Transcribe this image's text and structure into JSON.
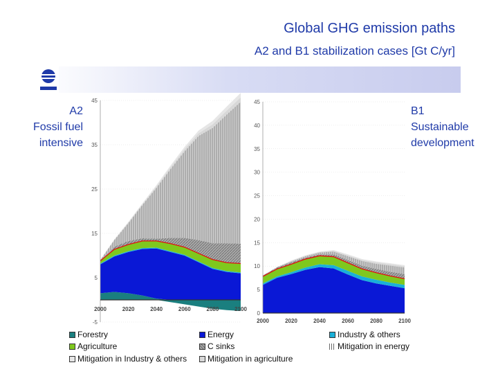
{
  "title": "Global GHG emission paths",
  "subtitle": "A2 and B1 stabilization cases [Gt C/yr]",
  "left_label": [
    "A2",
    "Fossil fuel",
    "intensive"
  ],
  "right_label": [
    "B1",
    "Sustainable",
    "development"
  ],
  "colors": {
    "forestry": "#1a7f7f",
    "energy": "#0a18d6",
    "industry": "#1ab0d8",
    "agriculture": "#7fc81e",
    "c_sinks": "#9a9a9a",
    "mitigation_energy": "#bcbcbc",
    "mitigation_industry": "#e6e6e6",
    "mitigation_agriculture": "#d8d8d8",
    "redline": "#e01010",
    "brand": "#1f3aa8"
  },
  "legend": [
    {
      "key": "forestry",
      "label": "Forestry"
    },
    {
      "key": "energy",
      "label": "Energy"
    },
    {
      "key": "industry",
      "label": "Industry & others"
    },
    {
      "key": "agriculture",
      "label": "Agriculture"
    },
    {
      "key": "c_sinks",
      "label": "C sinks"
    },
    {
      "key": "mitigation_energy",
      "label": "Mitigation in energy"
    },
    {
      "key": "mitigation_industry",
      "label": "Mitigation in Industry & others"
    },
    {
      "key": "mitigation_agriculture",
      "label": "Mitigation in agriculture"
    }
  ],
  "chart_data": [
    {
      "type": "area",
      "title": "A2 Fossil fuel intensive",
      "x": [
        2000,
        2010,
        2020,
        2030,
        2040,
        2050,
        2060,
        2070,
        2080,
        2090,
        2100
      ],
      "ylim": [
        -5,
        45
      ],
      "y_ticks": [
        -5,
        5,
        15,
        25,
        35,
        45
      ],
      "x_ticks": [
        "2000",
        "2020",
        "2040",
        "2060",
        "2080",
        "2100"
      ],
      "series": [
        {
          "name": "Forestry",
          "values": [
            1.5,
            1.8,
            1.5,
            1.0,
            0.3,
            -0.5,
            -1.0,
            -1.5,
            -2.0,
            -2.3,
            -2.5
          ]
        },
        {
          "name": "Energy",
          "values": [
            6.5,
            8.0,
            9.3,
            10.5,
            11.3,
            10.8,
            10.0,
            8.5,
            7.0,
            6.3,
            6.0
          ]
        },
        {
          "name": "Industry & others",
          "values": [
            0.2,
            0.2,
            0.2,
            0.2,
            0.2,
            0.2,
            0.2,
            0.2,
            0.2,
            0.2,
            0.2
          ]
        },
        {
          "name": "Agriculture",
          "values": [
            0.6,
            1.4,
            1.5,
            1.6,
            1.5,
            1.7,
            1.7,
            1.8,
            1.9,
            1.9,
            2.0
          ]
        },
        {
          "name": "C sinks",
          "values": [
            0.2,
            0.6,
            0.8,
            0.6,
            0.5,
            1.3,
            2.1,
            3.0,
            3.7,
            4.4,
            4.5
          ]
        },
        {
          "name": "Mitigation in energy",
          "values": [
            0.0,
            1.5,
            4.0,
            7.5,
            11.5,
            15.5,
            19.5,
            23.5,
            26.0,
            29.0,
            32.0
          ]
        },
        {
          "name": "Mitigation in agriculture",
          "values": [
            0.0,
            0.1,
            0.2,
            0.2,
            0.3,
            0.4,
            0.5,
            0.6,
            0.8,
            0.9,
            1.0
          ]
        },
        {
          "name": "Mitigation in Industry & others",
          "values": [
            0.0,
            0.1,
            0.1,
            0.2,
            0.3,
            0.4,
            0.5,
            0.6,
            0.8,
            0.9,
            1.0
          ]
        }
      ]
    },
    {
      "type": "area",
      "title": "B1 Sustainable development",
      "x": [
        2000,
        2010,
        2020,
        2030,
        2040,
        2050,
        2060,
        2070,
        2080,
        2090,
        2100
      ],
      "ylim": [
        0,
        45
      ],
      "y_ticks": [
        0,
        5,
        10,
        15,
        20,
        25,
        30,
        35,
        40,
        45
      ],
      "x_ticks": [
        "2000",
        "2020",
        "2040",
        "2060",
        "2080",
        "2100"
      ],
      "series": [
        {
          "name": "Energy",
          "values": [
            6.0,
            7.5,
            8.3,
            9.2,
            9.8,
            9.5,
            8.2,
            7.0,
            6.3,
            5.8,
            5.3
          ]
        },
        {
          "name": "Industry & others",
          "values": [
            0.3,
            0.3,
            0.4,
            0.5,
            0.6,
            0.7,
            0.8,
            0.8,
            0.8,
            0.7,
            0.7
          ]
        },
        {
          "name": "Agriculture",
          "values": [
            1.5,
            1.6,
            1.7,
            1.8,
            1.8,
            1.8,
            1.7,
            1.6,
            1.5,
            1.4,
            1.3
          ]
        },
        {
          "name": "C sinks",
          "values": [
            0.2,
            0.3,
            0.4,
            0.3,
            0.3,
            0.5,
            0.6,
            0.7,
            0.8,
            0.9,
            1.0
          ]
        },
        {
          "name": "Mitigation in energy",
          "values": [
            0.0,
            0.1,
            0.2,
            0.3,
            0.4,
            0.6,
            0.8,
            1.0,
            1.1,
            1.3,
            1.4
          ]
        },
        {
          "name": "Mitigation in agriculture",
          "values": [
            0.0,
            0.0,
            0.1,
            0.1,
            0.1,
            0.2,
            0.2,
            0.2,
            0.3,
            0.3,
            0.3
          ]
        },
        {
          "name": "Mitigation in Industry & others",
          "values": [
            0.0,
            0.0,
            0.1,
            0.1,
            0.1,
            0.1,
            0.2,
            0.2,
            0.2,
            0.2,
            0.2
          ]
        }
      ]
    }
  ]
}
